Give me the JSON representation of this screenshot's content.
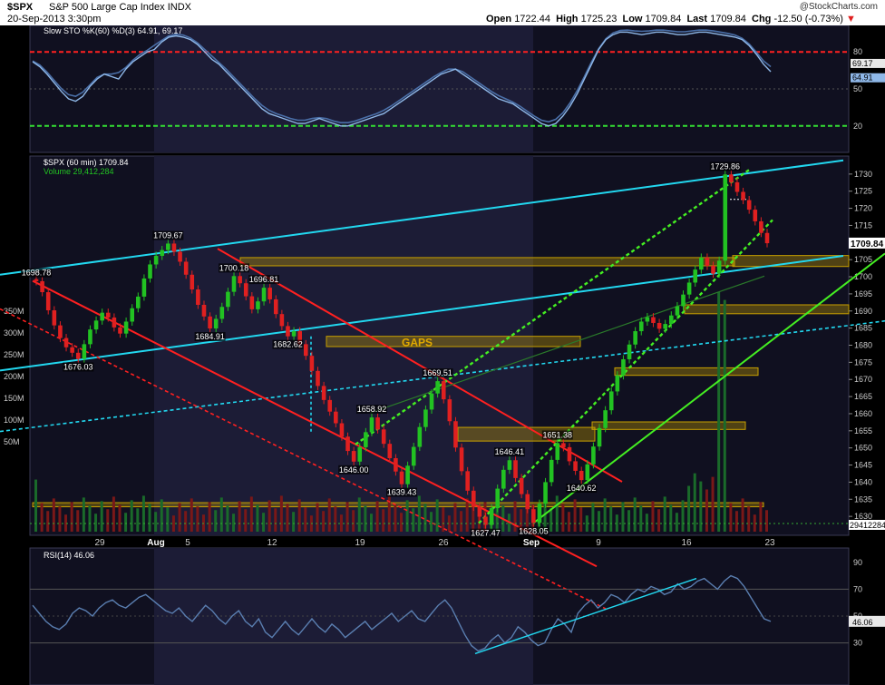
{
  "header": {
    "symbol": "$SPX",
    "name": "S&P 500 Large Cap Index",
    "exchange": "INDX",
    "date": "20-Sep-2013 3:30pm",
    "open_label": "Open",
    "open": "1722.44",
    "high_label": "High",
    "high": "1725.23",
    "low_label": "Low",
    "low": "1709.84",
    "last_label": "Last",
    "last": "1709.84",
    "chg_label": "Chg",
    "chg": "-12.50 (-0.73%)",
    "brand": "@StockCharts.com"
  },
  "colors": {
    "background": "#000000",
    "panel": "#101020",
    "highlight_region": "#1c1c36",
    "candle_up": "#22c222",
    "candle_down": "#e02020",
    "channel_cyan": "#22d8f0",
    "trend_red": "#ff2020",
    "trend_green": "#44ee22",
    "gap_box": "#c8a000",
    "sto_line": "#8fb8e8",
    "rsi_line": "#5a7eb0"
  },
  "chart_data": [
    {
      "type": "line",
      "panel": "stochastic",
      "title": "Slow STO %K(60) %D(3) 64.91, 69.17",
      "ylim": [
        0,
        100
      ],
      "yticks": [
        "80",
        "50",
        "20"
      ],
      "reference_lines": [
        80,
        20
      ],
      "last_values": [
        "69.17",
        "64.91"
      ],
      "series": [
        {
          "name": "%K",
          "values": [
            72,
            68,
            62,
            55,
            48,
            42,
            40,
            44,
            52,
            58,
            62,
            60,
            58,
            66,
            72,
            76,
            80,
            82,
            88,
            92,
            93,
            92,
            90,
            86,
            80,
            74,
            70,
            64,
            58,
            52,
            46,
            40,
            34,
            30,
            28,
            26,
            24,
            22,
            22,
            24,
            26,
            24,
            22,
            20,
            20,
            22,
            24,
            26,
            28,
            30,
            34,
            38,
            42,
            46,
            50,
            54,
            58,
            62,
            64,
            66,
            62,
            58,
            54,
            50,
            46,
            42,
            40,
            38,
            34,
            30,
            26,
            22,
            20,
            22,
            28,
            36,
            46,
            58,
            70,
            82,
            90,
            94,
            96,
            96,
            95,
            94,
            95,
            96,
            96,
            95,
            94,
            94,
            95,
            96,
            96,
            95,
            94,
            93,
            92,
            90,
            85,
            78,
            70,
            64
          ]
        }
      ]
    },
    {
      "type": "candlestick",
      "panel": "price",
      "title": "$SPX (60 min) 1709.84",
      "volume_label": "Volume 29,412,284",
      "ylim": [
        1625,
        1735
      ],
      "yticks": [
        "1730",
        "1725",
        "1720",
        "1715",
        "1710",
        "1705",
        "1700",
        "1695",
        "1690",
        "1685",
        "1680",
        "1675",
        "1670",
        "1665",
        "1660",
        "1655",
        "1650",
        "1645",
        "1640",
        "1635",
        "1630"
      ],
      "last_price_label": "1709.84",
      "x_tick_labels": [
        "29",
        "Aug",
        "5",
        "12",
        "19",
        "26",
        "Sep",
        "9",
        "16",
        "23"
      ],
      "volume_ticks": [
        "350M",
        "300M",
        "250M",
        "200M",
        "150M",
        "100M",
        "50M"
      ],
      "last_volume_label": "29412284",
      "closes": [
        1698.7,
        1695.5,
        1690.2,
        1685.8,
        1682.1,
        1679.4,
        1677.8,
        1676.0,
        1680.3,
        1684.6,
        1687.2,
        1689.5,
        1688.1,
        1685.2,
        1683.4,
        1686.9,
        1690.8,
        1694.2,
        1699.5,
        1703.6,
        1706.1,
        1707.8,
        1709.7,
        1707.3,
        1704.4,
        1700.6,
        1696.3,
        1691.8,
        1688.4,
        1684.9,
        1687.7,
        1691.2,
        1695.6,
        1700.2,
        1698.1,
        1694.3,
        1690.5,
        1692.8,
        1696.8,
        1693.4,
        1689.1,
        1685.6,
        1682.6,
        1684.1,
        1680.3,
        1676.9,
        1672.5,
        1668.1,
        1664.0,
        1660.6,
        1657.2,
        1653.3,
        1649.1,
        1646.0,
        1650.2,
        1654.6,
        1658.9,
        1655.4,
        1651.2,
        1647.0,
        1643.1,
        1639.4,
        1644.8,
        1650.3,
        1656.1,
        1661.2,
        1665.9,
        1669.5,
        1664.2,
        1657.8,
        1650.1,
        1643.2,
        1637.5,
        1632.8,
        1629.9,
        1627.5,
        1632.4,
        1638.1,
        1643.6,
        1646.4,
        1641.2,
        1636.5,
        1632.1,
        1628.1,
        1633.7,
        1640.0,
        1646.5,
        1651.4,
        1650.2,
        1646.1,
        1643.3,
        1640.6,
        1645.2,
        1650.4,
        1655.8,
        1661.0,
        1666.5,
        1671.2,
        1675.9,
        1680.2,
        1684.1,
        1686.9,
        1688.2,
        1686.5,
        1684.8,
        1686.2,
        1688.7,
        1691.4,
        1694.8,
        1698.3,
        1702.1,
        1705.6,
        1703.2,
        1700.9,
        1704.7,
        1729.9,
        1727.6,
        1724.8,
        1722.4,
        1719.6,
        1716.2,
        1712.8,
        1709.8
      ],
      "annotations": [
        {
          "label": "1698.78",
          "x": 0,
          "y": 1698.78
        },
        {
          "label": "1676.03",
          "x": 7,
          "y": 1676.03
        },
        {
          "label": "1709.67",
          "x": 22,
          "y": 1709.67
        },
        {
          "label": "1700.18",
          "x": 33,
          "y": 1700.18
        },
        {
          "label": "1684.91",
          "x": 29,
          "y": 1684.91
        },
        {
          "label": "1696.81",
          "x": 38,
          "y": 1696.81
        },
        {
          "label": "1682.62",
          "x": 42,
          "y": 1682.62
        },
        {
          "label": "1658.92",
          "x": 56,
          "y": 1658.92
        },
        {
          "label": "1646.00",
          "x": 53,
          "y": 1646.0
        },
        {
          "label": "1639.43",
          "x": 61,
          "y": 1639.43
        },
        {
          "label": "1669.51",
          "x": 67,
          "y": 1669.51
        },
        {
          "label": "1646.41",
          "x": 79,
          "y": 1646.41
        },
        {
          "label": "1627.47",
          "x": 75,
          "y": 1627.47
        },
        {
          "label": "1651.38",
          "x": 87,
          "y": 1651.38
        },
        {
          "label": "1628.05",
          "x": 83,
          "y": 1628.05
        },
        {
          "label": "1640.62",
          "x": 91,
          "y": 1640.62
        },
        {
          "label": "1729.86",
          "x": 115,
          "y": 1729.86
        }
      ],
      "gap_label": "GAPS"
    },
    {
      "type": "line",
      "panel": "rsi",
      "title": "RSI(14) 46.06",
      "ylim": [
        0,
        100
      ],
      "yticks": [
        "90",
        "70",
        "50",
        "30"
      ],
      "reference_lines": [
        70,
        30
      ],
      "last_value": "46.06",
      "series": [
        {
          "name": "RSI",
          "values": [
            58,
            52,
            46,
            42,
            40,
            44,
            52,
            56,
            54,
            50,
            56,
            60,
            62,
            58,
            56,
            60,
            64,
            66,
            62,
            58,
            54,
            52,
            56,
            50,
            46,
            52,
            58,
            54,
            48,
            44,
            50,
            54,
            46,
            42,
            48,
            38,
            34,
            40,
            46,
            40,
            36,
            42,
            48,
            42,
            38,
            44,
            40,
            34,
            38,
            42,
            46,
            40,
            44,
            48,
            52,
            46,
            50,
            54,
            48,
            46,
            52,
            58,
            62,
            56,
            46,
            36,
            28,
            24,
            26,
            32,
            36,
            30,
            34,
            42,
            38,
            32,
            28,
            30,
            40,
            48,
            44,
            38,
            52,
            58,
            62,
            56,
            60,
            66,
            64,
            60,
            66,
            70,
            68,
            72,
            70,
            66,
            68,
            74,
            70,
            72,
            76,
            78,
            74,
            70,
            76,
            80,
            78,
            72,
            64,
            56,
            48,
            46
          ]
        }
      ]
    }
  ]
}
